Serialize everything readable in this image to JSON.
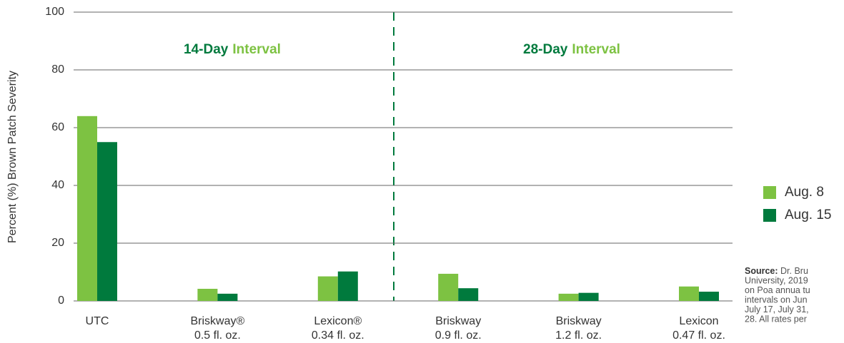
{
  "chart_data": {
    "type": "bar",
    "y_label": "Percent (%) Brown Patch Severity",
    "categories": [
      [
        "UTC"
      ],
      [
        "Briskway®",
        "0.5 fl. oz."
      ],
      [
        "Lexicon®",
        "0.34 fl. oz."
      ],
      [
        "Briskway",
        "0.9 fl. oz."
      ],
      [
        "Briskway",
        "1.2 fl. oz."
      ],
      [
        "Lexicon",
        "0.47 fl. oz."
      ]
    ],
    "series": [
      {
        "name": "Aug. 8",
        "color": "#7dc242",
        "values": [
          64,
          4.2,
          8.5,
          9.4,
          2.5,
          5
        ]
      },
      {
        "name": "Aug. 15",
        "color": "#007a3d",
        "values": [
          55,
          2.5,
          10.2,
          4.4,
          2.8,
          3.2
        ]
      }
    ],
    "ylim": [
      0,
      100
    ],
    "yticks": [
      0,
      20,
      40,
      60,
      80,
      100
    ],
    "grid": true,
    "annotations": [
      {
        "parts": [
          "14-Day",
          "Interval"
        ]
      },
      {
        "parts": [
          "28-Day",
          "Interval"
        ]
      }
    ],
    "source": {
      "label": "Source:",
      "lines": [
        " Dr. Bru",
        "University, 2019",
        "on Poa annua tu",
        "intervals on Jun",
        "July 17, July 31,",
        "28. All rates per"
      ]
    }
  }
}
